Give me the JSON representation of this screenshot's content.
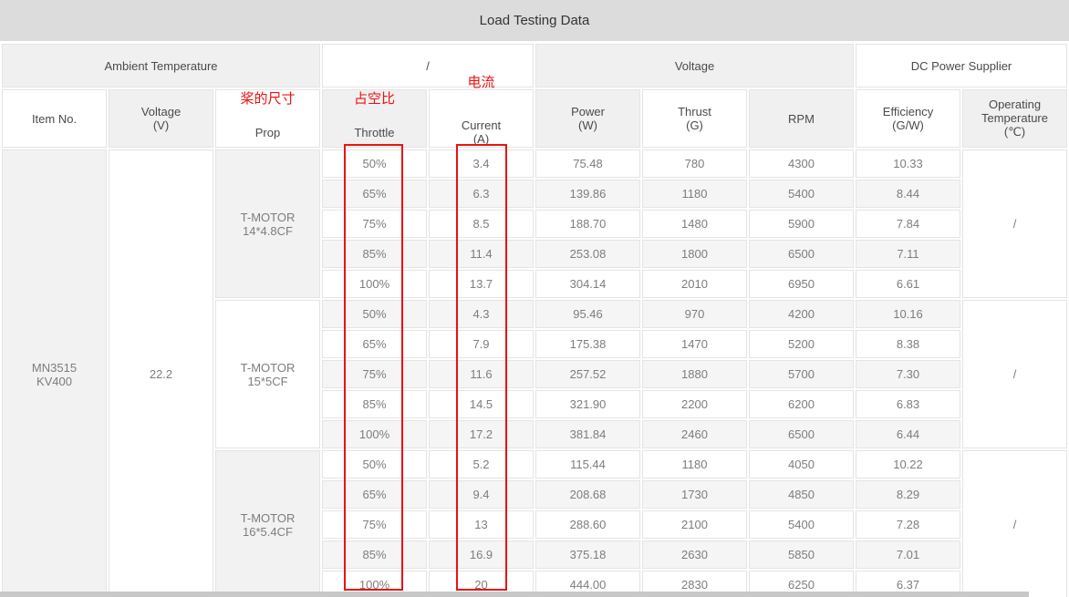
{
  "title": "Load Testing Data",
  "colors": {
    "title_bar": "#dcdcdc",
    "header_gray": "#f0f0f0",
    "row_stripe_gray": "#f5f5f5",
    "annotation_red": "#ee1111",
    "muted_text": "#a6a6a6"
  },
  "header": {
    "groups": [
      {
        "label": "Ambient Temperature"
      },
      {
        "label": "/"
      },
      {
        "label": "Voltage"
      },
      {
        "label": "DC Power Supplier"
      }
    ],
    "columns": [
      {
        "label": "Item No."
      },
      {
        "label": "Voltage\n(V)"
      },
      {
        "label": "Prop",
        "annotation": "桨的尺寸"
      },
      {
        "label": "Throttle",
        "annotation": "占空比"
      },
      {
        "label": "Current\n(A)",
        "annotation": "电流"
      },
      {
        "label": "Power\n(W)"
      },
      {
        "label": "Thrust\n(G)"
      },
      {
        "label": "RPM"
      },
      {
        "label": "Efficiency\n(G/W)"
      },
      {
        "label": "Operating\nTemperature\n(℃)"
      }
    ]
  },
  "chart_data": {
    "type": "table",
    "title": "Load Testing Data",
    "group_headers": [
      "Ambient Temperature",
      "/",
      "Voltage",
      "DC Power Supplier"
    ],
    "columns": [
      "Item No.",
      "Voltage (V)",
      "Prop",
      "Throttle",
      "Current (A)",
      "Power (W)",
      "Thrust (G)",
      "RPM",
      "Efficiency (G/W)",
      "Operating Temperature (℃)"
    ],
    "item_no": "MN3515\nKV400",
    "voltage_v": "22.2",
    "groups": [
      {
        "prop": "T-MOTOR\n14*4.8CF",
        "operating_temperature": "/",
        "rows": [
          {
            "throttle": "50%",
            "current_a": "3.4",
            "power_w": "75.48",
            "thrust_g": "780",
            "rpm": "4300",
            "efficiency_gw": "10.33"
          },
          {
            "throttle": "65%",
            "current_a": "6.3",
            "power_w": "139.86",
            "thrust_g": "1180",
            "rpm": "5400",
            "efficiency_gw": "8.44"
          },
          {
            "throttle": "75%",
            "current_a": "8.5",
            "power_w": "188.70",
            "thrust_g": "1480",
            "rpm": "5900",
            "efficiency_gw": "7.84"
          },
          {
            "throttle": "85%",
            "current_a": "11.4",
            "power_w": "253.08",
            "thrust_g": "1800",
            "rpm": "6500",
            "efficiency_gw": "7.11"
          },
          {
            "throttle": "100%",
            "current_a": "13.7",
            "power_w": "304.14",
            "thrust_g": "2010",
            "rpm": "6950",
            "efficiency_gw": "6.61"
          }
        ]
      },
      {
        "prop": "T-MOTOR\n15*5CF",
        "operating_temperature": "/",
        "rows": [
          {
            "throttle": "50%",
            "current_a": "4.3",
            "power_w": "95.46",
            "thrust_g": "970",
            "rpm": "4200",
            "efficiency_gw": "10.16"
          },
          {
            "throttle": "65%",
            "current_a": "7.9",
            "power_w": "175.38",
            "thrust_g": "1470",
            "rpm": "5200",
            "efficiency_gw": "8.38"
          },
          {
            "throttle": "75%",
            "current_a": "11.6",
            "power_w": "257.52",
            "thrust_g": "1880",
            "rpm": "5700",
            "efficiency_gw": "7.30"
          },
          {
            "throttle": "85%",
            "current_a": "14.5",
            "power_w": "321.90",
            "thrust_g": "2200",
            "rpm": "6200",
            "efficiency_gw": "6.83"
          },
          {
            "throttle": "100%",
            "current_a": "17.2",
            "power_w": "381.84",
            "thrust_g": "2460",
            "rpm": "6500",
            "efficiency_gw": "6.44"
          }
        ]
      },
      {
        "prop": "T-MOTOR\n16*5.4CF",
        "operating_temperature": "/",
        "rows": [
          {
            "throttle": "50%",
            "current_a": "5.2",
            "power_w": "115.44",
            "thrust_g": "1180",
            "rpm": "4050",
            "efficiency_gw": "10.22"
          },
          {
            "throttle": "65%",
            "current_a": "9.4",
            "power_w": "208.68",
            "thrust_g": "1730",
            "rpm": "4850",
            "efficiency_gw": "8.29"
          },
          {
            "throttle": "75%",
            "current_a": "13",
            "power_w": "288.60",
            "thrust_g": "2100",
            "rpm": "5400",
            "efficiency_gw": "7.28"
          },
          {
            "throttle": "85%",
            "current_a": "16.9",
            "power_w": "375.18",
            "thrust_g": "2630",
            "rpm": "5850",
            "efficiency_gw": "7.01"
          },
          {
            "throttle": "100%",
            "current_a": "20",
            "power_w": "444.00",
            "thrust_g": "2830",
            "rpm": "6250",
            "efficiency_gw": "6.37"
          }
        ]
      }
    ]
  }
}
